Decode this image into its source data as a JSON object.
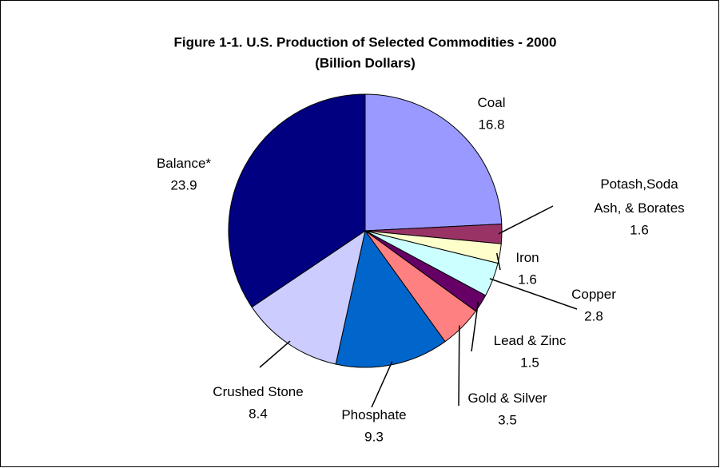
{
  "chart_data": {
    "type": "pie",
    "title": "Figure 1-1. U.S. Production of Selected Commodities - 2000",
    "subtitle": "(Billion Dollars)",
    "categories": [
      "Coal",
      "Potash,Soda Ash, & Borates",
      "Iron",
      "Copper",
      "Lead & Zinc",
      "Gold & Silver",
      "Phosphate",
      "Crushed Stone",
      "Balance*"
    ],
    "values": [
      16.8,
      1.6,
      1.6,
      2.8,
      1.5,
      3.5,
      9.3,
      8.4,
      23.9
    ],
    "colors": [
      "#9999ff",
      "#993366",
      "#ffffcc",
      "#ccffff",
      "#660066",
      "#ff8080",
      "#0066cc",
      "#ccccff",
      "#000080"
    ]
  }
}
